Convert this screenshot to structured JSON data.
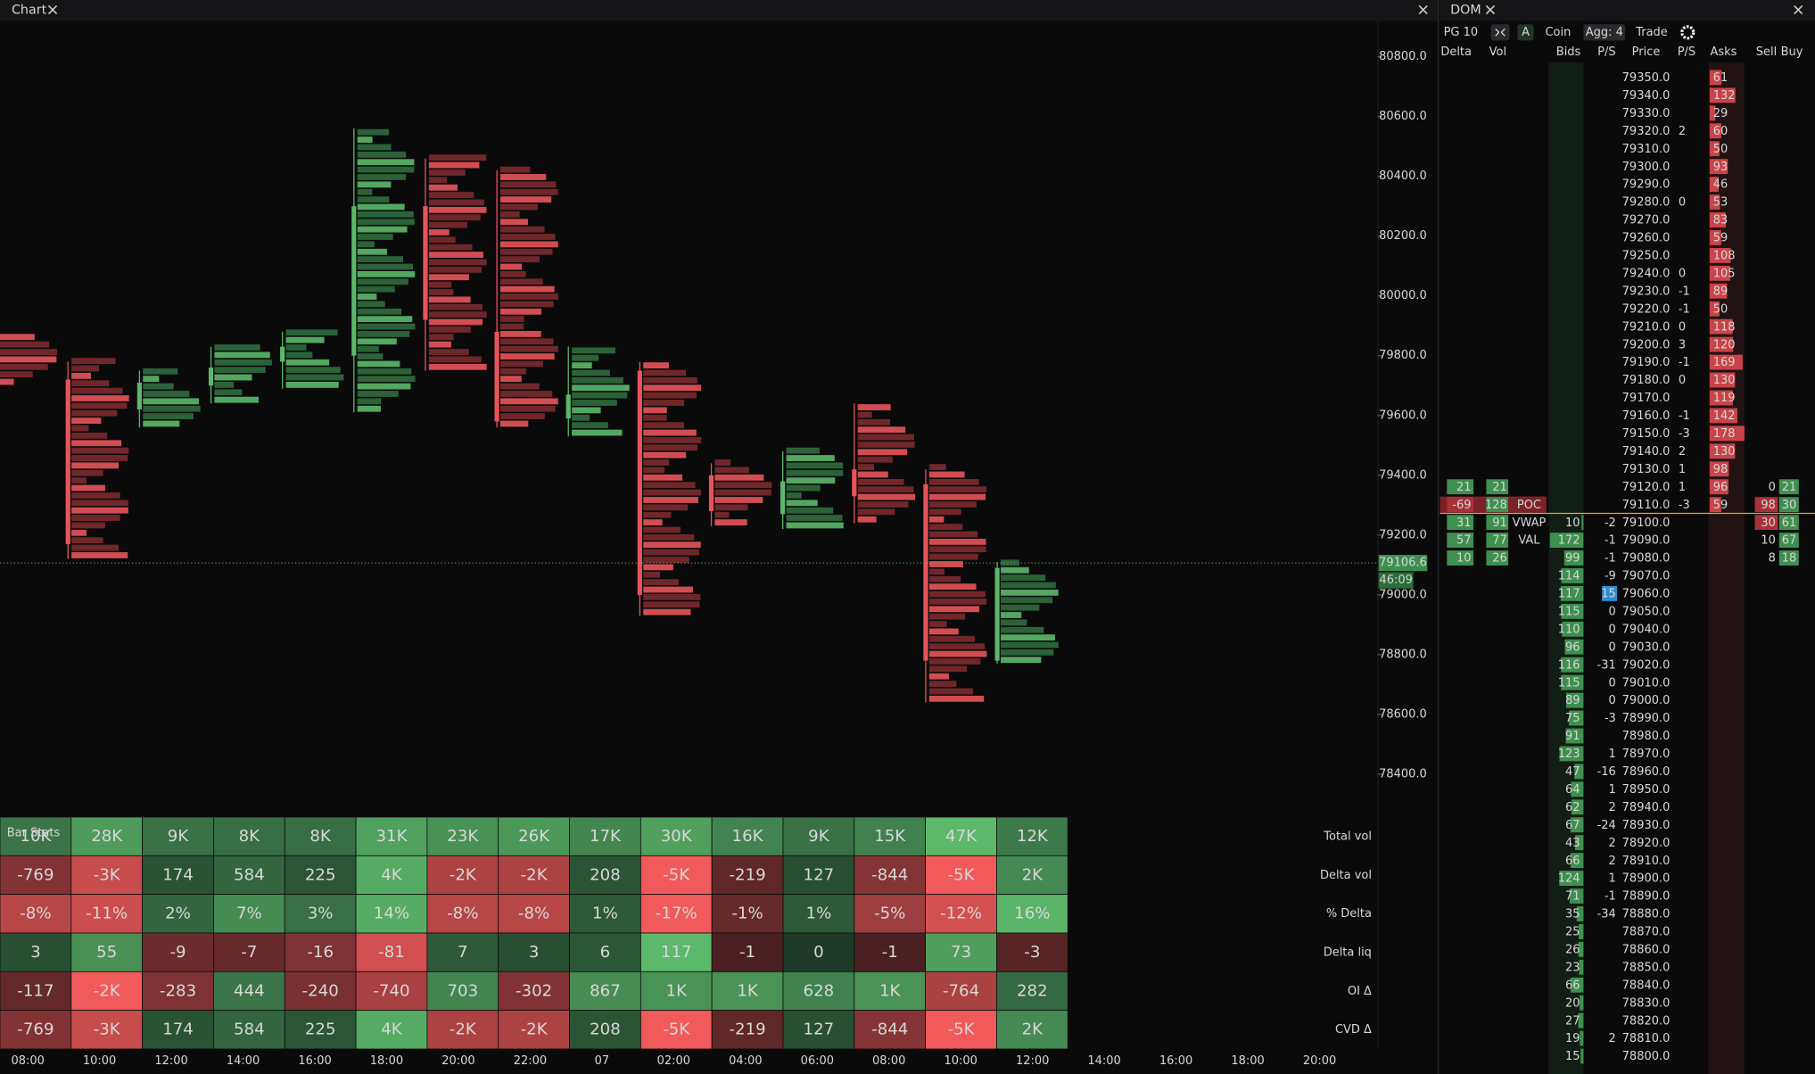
{
  "tabs": {
    "chart": "Chart",
    "dom": "DOM"
  },
  "chart_data": {
    "type": "candlestick",
    "ylim": [
      78280,
      80920
    ],
    "yticks": [
      {
        "value": 80800,
        "label": "80800.0"
      },
      {
        "value": 80600,
        "label": "80600.0"
      },
      {
        "value": 80400,
        "label": "80400.0"
      },
      {
        "value": 80200,
        "label": "80200.0"
      },
      {
        "value": 80000,
        "label": "80000.0"
      },
      {
        "value": 79800,
        "label": "79800.0"
      },
      {
        "value": 79600,
        "label": "79600.0"
      },
      {
        "value": 79400,
        "label": "79400.0"
      },
      {
        "value": 79200,
        "label": "79200.0"
      },
      {
        "value": 79000,
        "label": "79000.0"
      },
      {
        "value": 78800,
        "label": "78800.0"
      },
      {
        "value": 78600,
        "label": "78600.0"
      },
      {
        "value": 78400,
        "label": "78400.0"
      }
    ],
    "x_labels": [
      "08:00",
      "10:00",
      "12:00",
      "14:00",
      "16:00",
      "18:00",
      "20:00",
      "22:00",
      "07",
      "02:00",
      "04:00",
      "06:00",
      "08:00",
      "10:00",
      "12:00",
      "14:00",
      "16:00",
      "18:00",
      "20:00"
    ],
    "open": [
      79800,
      79720,
      79620,
      79700,
      79780,
      79800,
      80300,
      79880,
      79590,
      79750,
      79400,
      79270,
      79420,
      79370,
      78780
    ],
    "high": [
      79870,
      79780,
      79750,
      79830,
      79880,
      80560,
      80460,
      80420,
      79830,
      79780,
      79440,
      79480,
      79640,
      79420,
      79110
    ],
    "low": [
      79700,
      79120,
      79560,
      79640,
      79690,
      79610,
      79750,
      79560,
      79530,
      78930,
      79230,
      79220,
      79240,
      78640,
      78770
    ],
    "close": [
      79740,
      79170,
      79710,
      79760,
      79830,
      80300,
      79920,
      79580,
      79670,
      79000,
      79280,
      79380,
      79330,
      78780,
      79090
    ],
    "last_price": {
      "value": 79106.6,
      "label": "79106.6"
    },
    "countdown": "46:09"
  },
  "stats": {
    "title": "Bar Stats",
    "rows": [
      {
        "label": "Total vol",
        "cells": [
          "10K",
          "28K",
          "9K",
          "8K",
          "8K",
          "31K",
          "23K",
          "26K",
          "17K",
          "30K",
          "16K",
          "9K",
          "15K",
          "47K",
          "12K"
        ]
      },
      {
        "label": "Delta vol",
        "cells": [
          "-769",
          "-3K",
          "174",
          "584",
          "225",
          "4K",
          "-2K",
          "-2K",
          "208",
          "-5K",
          "-219",
          "127",
          "-844",
          "-5K",
          "2K"
        ]
      },
      {
        "label": "% Delta",
        "cells": [
          "-8%",
          "-11%",
          "2%",
          "7%",
          "3%",
          "14%",
          "-8%",
          "-8%",
          "1%",
          "-17%",
          "-1%",
          "1%",
          "-5%",
          "-12%",
          "16%"
        ]
      },
      {
        "label": "Delta liq",
        "cells": [
          "3",
          "55",
          "-9",
          "-7",
          "-16",
          "-81",
          "7",
          "3",
          "6",
          "117",
          "-1",
          "0",
          "-1",
          "73",
          "-3"
        ]
      },
      {
        "label": "OI Δ",
        "cells": [
          "-117",
          "-2K",
          "-283",
          "444",
          "-240",
          "-740",
          "703",
          "-302",
          "867",
          "1K",
          "1K",
          "628",
          "1K",
          "-764",
          "282"
        ]
      },
      {
        "label": "CVD Δ",
        "cells": [
          "-769",
          "-3K",
          "174",
          "584",
          "225",
          "4K",
          "-2K",
          "-2K",
          "208",
          "-5K",
          "-219",
          "127",
          "-844",
          "-5K",
          "2K"
        ]
      }
    ]
  },
  "dom": {
    "toolbar": [
      "PG 10",
      "A",
      "Coin",
      "Agg: 4",
      "Trade"
    ],
    "headers": [
      "Delta",
      "Vol",
      "Bids",
      "P/S",
      "Price",
      "P/S",
      "Asks",
      "Sell",
      "Buy"
    ],
    "rows": [
      {
        "price": "79350.0",
        "ask": 61
      },
      {
        "price": "79340.0",
        "ask": 132
      },
      {
        "price": "79330.0",
        "ask": 29
      },
      {
        "price": "79320.0",
        "ask": 60,
        "ask_ps": 2
      },
      {
        "price": "79310.0",
        "ask": 50
      },
      {
        "price": "79300.0",
        "ask": 93
      },
      {
        "price": "79290.0",
        "ask": 46
      },
      {
        "price": "79280.0",
        "ask": 53,
        "ask_ps": 0
      },
      {
        "price": "79270.0",
        "ask": 83
      },
      {
        "price": "79260.0",
        "ask": 59
      },
      {
        "price": "79250.0",
        "ask": 108
      },
      {
        "price": "79240.0",
        "ask": 105,
        "ask_ps": 0
      },
      {
        "price": "79230.0",
        "ask": 89,
        "ask_ps": -1
      },
      {
        "price": "79220.0",
        "ask": 50,
        "ask_ps": -1
      },
      {
        "price": "79210.0",
        "ask": 118,
        "ask_ps": 0
      },
      {
        "price": "79200.0",
        "ask": 120,
        "ask_ps": 3
      },
      {
        "price": "79190.0",
        "ask": 169,
        "ask_ps": -1
      },
      {
        "price": "79180.0",
        "ask": 130,
        "ask_ps": 0
      },
      {
        "price": "79170.0",
        "ask": 119
      },
      {
        "price": "79160.0",
        "ask": 142,
        "ask_ps": -1
      },
      {
        "price": "79150.0",
        "ask": 178,
        "ask_ps": -3
      },
      {
        "price": "79140.0",
        "ask": 130,
        "ask_ps": 2
      },
      {
        "price": "79130.0",
        "ask": 98,
        "ask_ps": 1
      },
      {
        "price": "79120.0",
        "ask": 96,
        "ask_ps": 1,
        "delta": 21,
        "vol": 21,
        "sell": 0,
        "buy": 21
      },
      {
        "price": "79110.0",
        "ask": 59,
        "ask_ps": -3,
        "delta": -69,
        "vol": 128,
        "tag": "POC",
        "sell": 98,
        "buy": 30
      },
      {
        "price": "79100.0",
        "bid": 10,
        "bid_ps": -2,
        "delta": 31,
        "vol": 91,
        "tag": "VWAP",
        "sell": 30,
        "buy": 61
      },
      {
        "price": "79090.0",
        "bid": 172,
        "bid_ps": -1,
        "delta": 57,
        "vol": 77,
        "tag": "VAL",
        "sell": 10,
        "buy": 67
      },
      {
        "price": "79080.0",
        "bid": 99,
        "bid_ps": -1,
        "delta": 10,
        "vol": 26,
        "sell": 8,
        "buy": 18
      },
      {
        "price": "79070.0",
        "bid": 114,
        "bid_ps": -9
      },
      {
        "price": "79060.0",
        "bid": 117,
        "bid_ps": 15
      },
      {
        "price": "79050.0",
        "bid": 115,
        "bid_ps": 0
      },
      {
        "price": "79040.0",
        "bid": 110,
        "bid_ps": 0
      },
      {
        "price": "79030.0",
        "bid": 96,
        "bid_ps": 0
      },
      {
        "price": "79020.0",
        "bid": 116,
        "bid_ps": -31
      },
      {
        "price": "79010.0",
        "bid": 115,
        "bid_ps": 0
      },
      {
        "price": "79000.0",
        "bid": 89,
        "bid_ps": 0
      },
      {
        "price": "78990.0",
        "bid": 75,
        "bid_ps": -3
      },
      {
        "price": "78980.0",
        "bid": 91
      },
      {
        "price": "78970.0",
        "bid": 123,
        "bid_ps": 1
      },
      {
        "price": "78960.0",
        "bid": 47,
        "bid_ps": -16
      },
      {
        "price": "78950.0",
        "bid": 64,
        "bid_ps": 1
      },
      {
        "price": "78940.0",
        "bid": 62,
        "bid_ps": 2
      },
      {
        "price": "78930.0",
        "bid": 67,
        "bid_ps": -24
      },
      {
        "price": "78920.0",
        "bid": 43,
        "bid_ps": 2
      },
      {
        "price": "78910.0",
        "bid": 66,
        "bid_ps": 2
      },
      {
        "price": "78900.0",
        "bid": 124,
        "bid_ps": 1
      },
      {
        "price": "78890.0",
        "bid": 71,
        "bid_ps": -1
      },
      {
        "price": "78880.0",
        "bid": 35,
        "bid_ps": -34
      },
      {
        "price": "78870.0",
        "bid": 25
      },
      {
        "price": "78860.0",
        "bid": 26
      },
      {
        "price": "78850.0",
        "bid": 23
      },
      {
        "price": "78840.0",
        "bid": 66
      },
      {
        "price": "78830.0",
        "bid": 20
      },
      {
        "price": "78820.0",
        "bid": 27
      },
      {
        "price": "78810.0",
        "bid": 19,
        "bid_ps": 2
      },
      {
        "price": "78800.0",
        "bid": 15
      }
    ]
  }
}
